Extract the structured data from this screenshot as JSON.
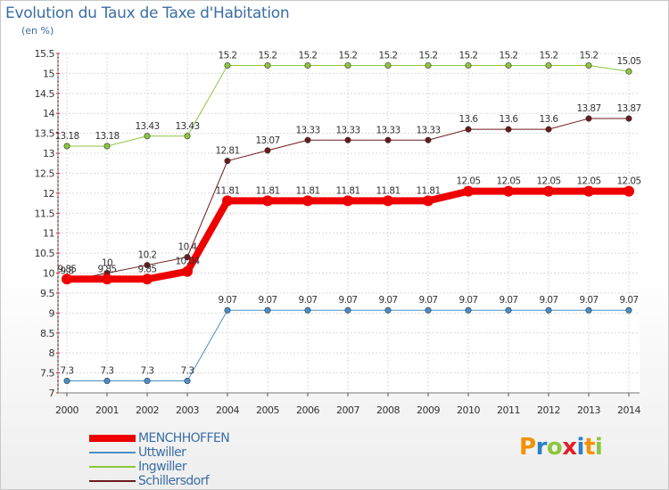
{
  "title": "Evolution du Taux de Taxe d'Habitation",
  "subtitle": "(en %)",
  "logo": {
    "letters": [
      "P",
      "r",
      "o",
      "x",
      "i",
      "t",
      "i"
    ],
    "colors": [
      "#f39200",
      "#2b80c5",
      "#8cc63f",
      "#e31e24",
      "#2b80c5",
      "#f39200",
      "#8cc63f"
    ]
  },
  "chart_data": {
    "type": "line",
    "x": [
      "2000",
      "2001",
      "2002",
      "2003",
      "2004",
      "2005",
      "2006",
      "2007",
      "2008",
      "2009",
      "2010",
      "2011",
      "2012",
      "2013",
      "2014"
    ],
    "ylim": [
      7,
      15.5
    ],
    "yticks": [
      "7",
      "7.5",
      "8",
      "8.5",
      "9",
      "9.5",
      "10",
      "10.5",
      "11",
      "11.5",
      "12",
      "12.5",
      "13",
      "13.5",
      "14",
      "14.5",
      "15",
      "15.5"
    ],
    "grid": true,
    "series": [
      {
        "name": "Ingwiller",
        "color": "#8cc63f",
        "width": 1,
        "values": [
          13.18,
          13.18,
          13.43,
          13.43,
          15.2,
          15.2,
          15.2,
          15.2,
          15.2,
          15.2,
          15.2,
          15.2,
          15.2,
          15.2,
          15.05
        ],
        "labels": [
          "13.18",
          "13.18",
          "13.43",
          "13.43",
          "15.2",
          "15.2",
          "15.2",
          "15.2",
          "15.2",
          "15.2",
          "15.2",
          "15.2",
          "15.2",
          "15.2",
          "15.05"
        ]
      },
      {
        "name": "Schillersdorf",
        "color": "#6b1a1a",
        "width": 1,
        "values": [
          9.8,
          10.0,
          10.2,
          10.4,
          12.81,
          13.07,
          13.33,
          13.33,
          13.33,
          13.33,
          13.6,
          13.6,
          13.6,
          13.87,
          13.87
        ],
        "labels": [
          "9.8",
          "10",
          "10.2",
          "10.4",
          "12.81",
          "13.07",
          "13.33",
          "13.33",
          "13.33",
          "13.33",
          "13.6",
          "13.6",
          "13.6",
          "13.87",
          "13.87"
        ]
      },
      {
        "name": "Uttwiller",
        "color": "#4a8fc7",
        "width": 1,
        "values": [
          7.3,
          7.3,
          7.3,
          7.3,
          9.07,
          9.07,
          9.07,
          9.07,
          9.07,
          9.07,
          9.07,
          9.07,
          9.07,
          9.07,
          9.07
        ],
        "labels": [
          "7.3",
          "7.3",
          "7.3",
          "7.3",
          "9.07",
          "9.07",
          "9.07",
          "9.07",
          "9.07",
          "9.07",
          "9.07",
          "9.07",
          "9.07",
          "9.07",
          "9.07"
        ]
      },
      {
        "name": "MENCHHOFFEN",
        "color": "#ee0000",
        "width": 8,
        "values": [
          9.85,
          9.85,
          9.85,
          10.04,
          11.81,
          11.81,
          11.81,
          11.81,
          11.81,
          11.81,
          12.05,
          12.05,
          12.05,
          12.05,
          12.05
        ],
        "labels": [
          "9.85",
          "9.85",
          "9.85",
          "10.04",
          "11.81",
          "11.81",
          "11.81",
          "11.81",
          "11.81",
          "11.81",
          "12.05",
          "12.05",
          "12.05",
          "12.05",
          "12.05"
        ]
      }
    ],
    "legend": [
      {
        "name": "MENCHHOFFEN",
        "color": "#ee0000",
        "width": 8
      },
      {
        "name": "Uttwiller",
        "color": "#4a8fc7",
        "width": 2
      },
      {
        "name": "Ingwiller",
        "color": "#8cc63f",
        "width": 2
      },
      {
        "name": "Schillersdorf",
        "color": "#6b1a1a",
        "width": 2
      }
    ]
  }
}
